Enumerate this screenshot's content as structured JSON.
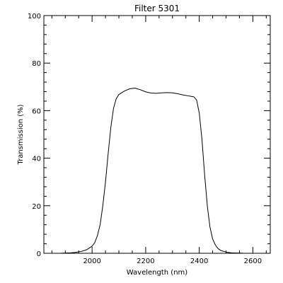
{
  "chart_data": {
    "type": "line",
    "title": "Filter 5301",
    "xlabel": "Wavelength (nm)",
    "ylabel": "Transmission (%)",
    "xlim": [
      1820,
      2665
    ],
    "ylim": [
      0,
      100
    ],
    "xticks": [
      2000,
      2200,
      2400,
      2600
    ],
    "yticks": [
      0,
      20,
      40,
      60,
      80,
      100
    ],
    "grid": false,
    "series": [
      {
        "color": "#000000",
        "points": [
          [
            1880,
            0.0
          ],
          [
            1900,
            0.1
          ],
          [
            1920,
            0.2
          ],
          [
            1940,
            0.4
          ],
          [
            1960,
            0.8
          ],
          [
            1980,
            1.5
          ],
          [
            2000,
            3.0
          ],
          [
            2010,
            4.5
          ],
          [
            2020,
            7.5
          ],
          [
            2030,
            12.0
          ],
          [
            2040,
            20.0
          ],
          [
            2050,
            30.0
          ],
          [
            2060,
            42.0
          ],
          [
            2070,
            53.0
          ],
          [
            2080,
            61.0
          ],
          [
            2090,
            65.0
          ],
          [
            2100,
            66.8
          ],
          [
            2120,
            68.2
          ],
          [
            2140,
            69.2
          ],
          [
            2160,
            69.5
          ],
          [
            2180,
            68.8
          ],
          [
            2200,
            67.9
          ],
          [
            2220,
            67.4
          ],
          [
            2240,
            67.3
          ],
          [
            2260,
            67.5
          ],
          [
            2280,
            67.6
          ],
          [
            2300,
            67.5
          ],
          [
            2320,
            67.1
          ],
          [
            2340,
            66.6
          ],
          [
            2360,
            66.2
          ],
          [
            2380,
            65.8
          ],
          [
            2390,
            64.5
          ],
          [
            2400,
            59.0
          ],
          [
            2410,
            48.0
          ],
          [
            2420,
            33.0
          ],
          [
            2430,
            20.0
          ],
          [
            2440,
            11.0
          ],
          [
            2450,
            6.0
          ],
          [
            2460,
            3.5
          ],
          [
            2470,
            2.0
          ],
          [
            2480,
            1.2
          ],
          [
            2500,
            0.5
          ],
          [
            2520,
            0.2
          ],
          [
            2540,
            0.1
          ],
          [
            2570,
            0.0
          ]
        ]
      }
    ]
  }
}
